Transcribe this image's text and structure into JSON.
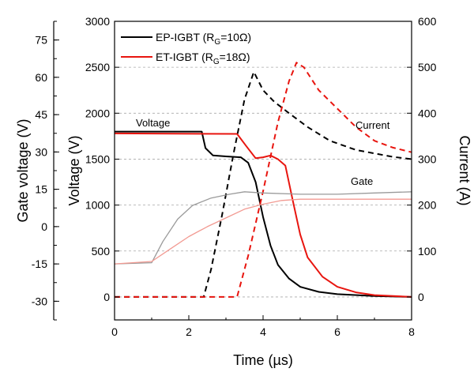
{
  "chart_data": {
    "type": "line",
    "x_axis": {
      "label": "Time (µs)",
      "range": [
        0,
        8
      ],
      "ticks": [
        "0",
        "2",
        "4",
        "6",
        "8"
      ]
    },
    "y_axes": {
      "voltage": {
        "label": "Voltage (V)",
        "range": [
          -250,
          3000
        ],
        "ticks": [
          "0",
          "500",
          "1000",
          "1500",
          "2000",
          "2500",
          "3000"
        ]
      },
      "gate": {
        "label": "Gate voltage (V)",
        "range": [
          -37.5,
          82.5
        ],
        "ticks": [
          "-30",
          "-15",
          "0",
          "15",
          "30",
          "45",
          "60",
          "75"
        ]
      },
      "current": {
        "label": "Current (A)",
        "range": [
          -50,
          600
        ],
        "ticks": [
          "0",
          "100",
          "200",
          "300",
          "400",
          "500",
          "600"
        ]
      }
    },
    "grid": "horizontal dashed",
    "legend": {
      "placement": "top-left",
      "entries": [
        {
          "series": "EP-IGBT",
          "prefix": "EP-IGBT (R",
          "sub": "G",
          "suffix": "=10Ω)",
          "color": "#000000"
        },
        {
          "series": "ET-IGBT",
          "prefix": "ET-IGBT (R",
          "sub": "G",
          "suffix": "=18Ω)",
          "color": "#e8150f"
        }
      ]
    },
    "annotations": {
      "voltage": "Voltage",
      "current": "Current",
      "gate": "Gate"
    },
    "series": [
      {
        "name": "EP-IGBT",
        "quantity": "voltage",
        "axis": "voltage",
        "color": "#000000",
        "points": [
          [
            0,
            1800
          ],
          [
            2.35,
            1800
          ],
          [
            2.45,
            1620
          ],
          [
            2.65,
            1540
          ],
          [
            3.0,
            1530
          ],
          [
            3.4,
            1520
          ],
          [
            3.6,
            1460
          ],
          [
            3.8,
            1250
          ],
          [
            4.0,
            870
          ],
          [
            4.2,
            560
          ],
          [
            4.4,
            350
          ],
          [
            4.7,
            200
          ],
          [
            5.0,
            110
          ],
          [
            5.5,
            55
          ],
          [
            6.0,
            30
          ],
          [
            7.0,
            10
          ],
          [
            8.0,
            0
          ]
        ]
      },
      {
        "name": "ET-IGBT",
        "quantity": "voltage",
        "axis": "voltage",
        "color": "#e8150f",
        "points": [
          [
            0,
            1780
          ],
          [
            3.3,
            1775
          ],
          [
            3.55,
            1640
          ],
          [
            3.8,
            1510
          ],
          [
            4.0,
            1520
          ],
          [
            4.2,
            1540
          ],
          [
            4.4,
            1500
          ],
          [
            4.6,
            1430
          ],
          [
            4.8,
            1050
          ],
          [
            5.0,
            680
          ],
          [
            5.2,
            430
          ],
          [
            5.6,
            220
          ],
          [
            6.0,
            110
          ],
          [
            6.5,
            50
          ],
          [
            7.0,
            20
          ],
          [
            8.0,
            0
          ]
        ]
      },
      {
        "name": "EP-IGBT",
        "quantity": "current",
        "axis": "current",
        "color": "#000000",
        "points": [
          [
            0,
            0
          ],
          [
            2.4,
            0
          ],
          [
            2.6,
            60
          ],
          [
            2.9,
            180
          ],
          [
            3.2,
            310
          ],
          [
            3.5,
            430
          ],
          [
            3.75,
            490
          ],
          [
            4.0,
            450
          ],
          [
            4.3,
            425
          ],
          [
            4.7,
            400
          ],
          [
            5.2,
            370
          ],
          [
            5.8,
            340
          ],
          [
            6.5,
            320
          ],
          [
            7.5,
            305
          ],
          [
            8.0,
            300
          ]
        ]
      },
      {
        "name": "ET-IGBT",
        "quantity": "current",
        "axis": "current",
        "color": "#e8150f",
        "points": [
          [
            0,
            0
          ],
          [
            3.3,
            0
          ],
          [
            3.6,
            90
          ],
          [
            4.0,
            230
          ],
          [
            4.4,
            380
          ],
          [
            4.7,
            470
          ],
          [
            4.9,
            510
          ],
          [
            5.1,
            500
          ],
          [
            5.5,
            450
          ],
          [
            6.0,
            410
          ],
          [
            6.5,
            370
          ],
          [
            7.0,
            340
          ],
          [
            7.5,
            325
          ],
          [
            8.0,
            315
          ]
        ]
      },
      {
        "name": "EP-IGBT",
        "quantity": "gate",
        "axis": "gate",
        "color": "#9a9a9a",
        "points": [
          [
            0,
            -15
          ],
          [
            1.0,
            -14.5
          ],
          [
            1.3,
            -6
          ],
          [
            1.7,
            3
          ],
          [
            2.1,
            8.5
          ],
          [
            2.6,
            11.5
          ],
          [
            3.1,
            13
          ],
          [
            3.5,
            14
          ],
          [
            4.0,
            13.5
          ],
          [
            5.0,
            13
          ],
          [
            6.0,
            13
          ],
          [
            7.0,
            13.5
          ],
          [
            8.0,
            14
          ]
        ]
      },
      {
        "name": "ET-IGBT",
        "quantity": "gate",
        "axis": "gate",
        "color": "#f29a92",
        "points": [
          [
            0,
            -15
          ],
          [
            1.0,
            -14
          ],
          [
            1.5,
            -9
          ],
          [
            2.0,
            -4
          ],
          [
            2.5,
            0
          ],
          [
            3.0,
            3.5
          ],
          [
            3.5,
            7
          ],
          [
            4.0,
            9
          ],
          [
            4.5,
            10.5
          ],
          [
            5.0,
            11
          ],
          [
            6.0,
            11
          ],
          [
            7.0,
            11
          ],
          [
            8.0,
            11
          ]
        ]
      }
    ]
  }
}
